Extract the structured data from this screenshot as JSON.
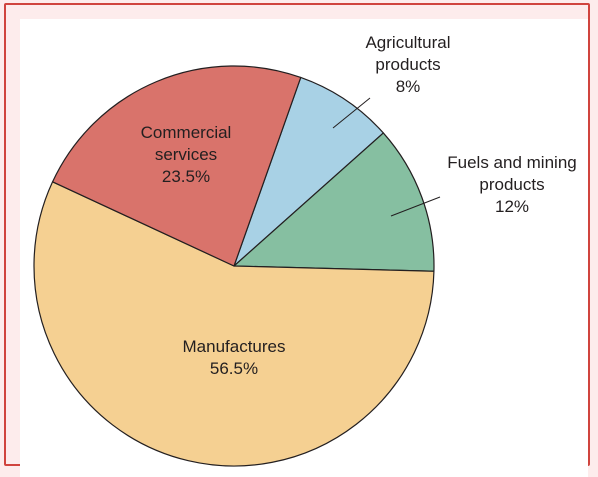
{
  "chart_data": {
    "type": "pie",
    "title": "",
    "slices": [
      {
        "label_lines": [
          "Agricultural",
          "products",
          "8%"
        ],
        "value": 8,
        "color": "#a8d1e5"
      },
      {
        "label_lines": [
          "Fuels and mining",
          "products",
          "12%"
        ],
        "value": 12,
        "color": "#86bfa1"
      },
      {
        "label_lines": [
          "Manufactures",
          "56.5%"
        ],
        "value": 56.5,
        "color": "#f5d092"
      },
      {
        "label_lines": [
          "Commercial",
          "services",
          "23.5%"
        ],
        "value": 23.5,
        "color": "#d9736b"
      }
    ],
    "start_angle_deg": 19.5,
    "direction": "clockwise",
    "slice_outline": "#231f20",
    "leader_lines": [
      0,
      1
    ]
  }
}
